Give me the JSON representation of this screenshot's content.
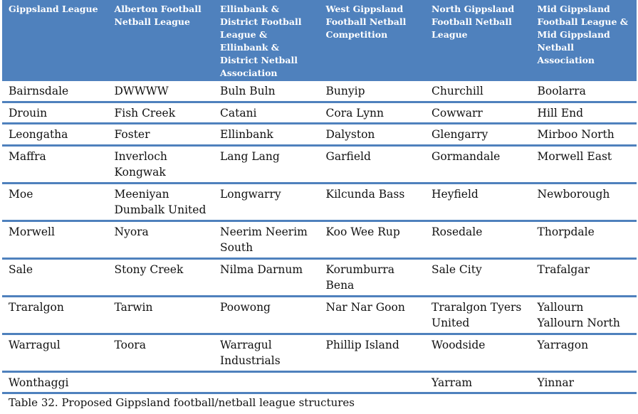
{
  "table": {
    "headers": [
      "Gippsland League",
      "Alberton Football Netball League",
      "Ellinbank & District Football League & Ellinbank & District Netball Association",
      "West Gippsland Football Netball Competition",
      "North Gippsland Football Netball League",
      "Mid Gippsland Football League & Mid Gippsland Netball Association"
    ],
    "rows": [
      [
        "Bairnsdale",
        "DWWWW",
        "Buln Buln",
        "Bunyip",
        "Churchill",
        "Boolarra"
      ],
      [
        "Drouin",
        "Fish Creek",
        "Catani",
        "Cora Lynn",
        "Cowwarr",
        "Hill End"
      ],
      [
        "Leongatha",
        "Foster",
        "Ellinbank",
        "Dalyston",
        "Glengarry",
        "Mirboo North"
      ],
      [
        "Maffra",
        "Inverloch Kongwak",
        "Lang Lang",
        "Garfield",
        "Gormandale",
        "Morwell East"
      ],
      [
        "Moe",
        "Meeniyan Dumbalk United",
        "Longwarry",
        "Kilcunda Bass",
        "Heyfield",
        "Newborough"
      ],
      [
        "Morwell",
        "Nyora",
        "Neerim Neerim South",
        "Koo Wee Rup",
        "Rosedale",
        "Thorpdale"
      ],
      [
        "Sale",
        "Stony Creek",
        "Nilma Darnum",
        "Korumburra Bena",
        "Sale City",
        "Trafalgar"
      ],
      [
        "Traralgon",
        "Tarwin",
        "Poowong",
        "Nar Nar Goon",
        "Traralgon Tyers United",
        "Yallourn Yallourn North"
      ],
      [
        "Warragul",
        "Toora",
        "Warragul Industrials",
        "Phillip Island",
        "Woodside",
        "Yarragon"
      ],
      [
        "Wonthaggi",
        "",
        "",
        "",
        "Yarram",
        "Yinnar"
      ]
    ]
  },
  "caption": "Table 32. Proposed Gippsland football/netball league structures",
  "colors": {
    "header_bg": "#4f81bd",
    "rule": "#4f81bd"
  }
}
